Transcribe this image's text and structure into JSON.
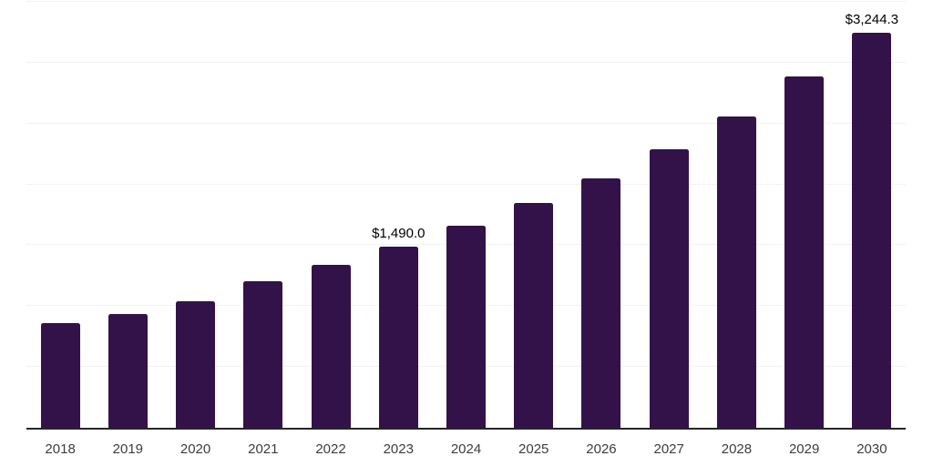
{
  "chart_data": {
    "type": "bar",
    "title": "",
    "xlabel": "",
    "ylabel": "",
    "categories": [
      "2018",
      "2019",
      "2020",
      "2021",
      "2022",
      "2023",
      "2024",
      "2025",
      "2026",
      "2027",
      "2028",
      "2029",
      "2030"
    ],
    "values": [
      860,
      935,
      1040,
      1205,
      1340,
      1490,
      1660,
      1845,
      2050,
      2290,
      2560,
      2890,
      3244.3
    ],
    "data_labels": [
      null,
      null,
      null,
      null,
      null,
      "$1,490.0",
      null,
      null,
      null,
      null,
      null,
      null,
      "$3,244.3"
    ],
    "ylim": [
      0,
      3500
    ],
    "gridline_step": 500,
    "grid": "horizontal",
    "legend": "none",
    "colors": {
      "bar": "#33124a",
      "axis_line": "#262626",
      "gridline": "#f2f2f4",
      "x_label": "#3d3d3d",
      "data_label": "#000000"
    }
  }
}
